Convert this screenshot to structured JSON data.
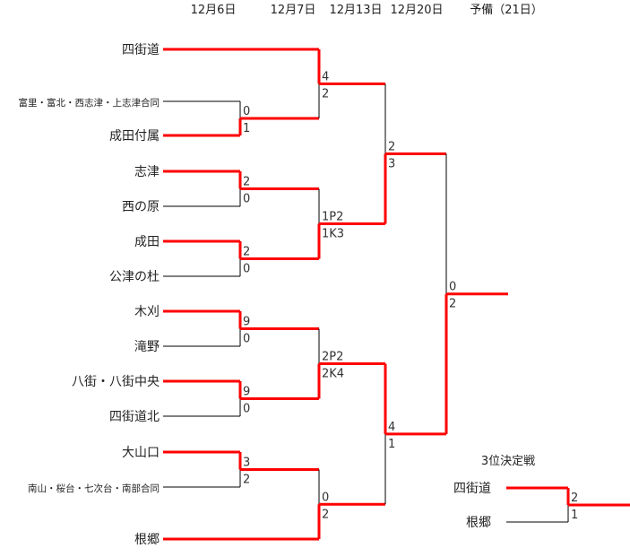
{
  "dates": [
    "12月6日",
    "12月7日",
    "12月13日",
    "12月20日",
    "予備（21日）"
  ],
  "teams": [
    "四街道",
    "富里・富北・西志津・上志津合同",
    "成田付属",
    "志津",
    "西の原",
    "成田",
    "公津の杜",
    "木刈",
    "滝野",
    "八街・八街中央",
    "四街道北",
    "大山口",
    "南山・桜台・七次台・南部合同",
    "根郷"
  ],
  "matches": [
    {
      "scores": [
        "0",
        "1"
      ],
      "winner": "bottom"
    },
    {
      "scores": [
        "2",
        "0"
      ],
      "winner": "top"
    },
    {
      "scores": [
        "2",
        "0"
      ],
      "winner": "top"
    },
    {
      "scores": [
        "9",
        "0"
      ],
      "winner": "top"
    },
    {
      "scores": [
        "9",
        "0"
      ],
      "winner": "top"
    },
    {
      "scores": [
        "3",
        "2"
      ],
      "winner": "top"
    },
    {
      "scores": [
        "4",
        "2"
      ],
      "winner": "top"
    },
    {
      "scores": [
        "1P2",
        "1K3"
      ],
      "winner": "bottom"
    },
    {
      "scores": [
        "2P2",
        "2K4"
      ],
      "winner": "bottom"
    },
    {
      "scores": [
        "0",
        "2"
      ],
      "winner": "bottom"
    },
    {
      "scores": [
        "2",
        "3"
      ],
      "winner": "bottom"
    },
    {
      "scores": [
        "4",
        "1"
      ],
      "winner": "top"
    },
    {
      "scores": [
        "0",
        "2"
      ],
      "winner": "bottom"
    }
  ],
  "third_place": {
    "title": "3位決定戦",
    "teams": [
      "四街道",
      "根郷"
    ],
    "scores": [
      "2",
      "1"
    ],
    "winner": "top"
  },
  "colors": {
    "winner_line": "#ff0000",
    "line": "#000000"
  }
}
